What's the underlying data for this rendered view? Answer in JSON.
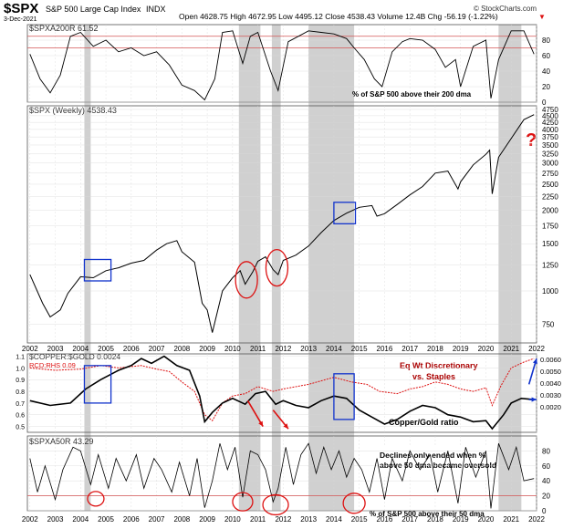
{
  "header": {
    "symbol": "$SPX",
    "name": "S&P 500 Large Cap Index",
    "exchange": "INDX",
    "date": "3-Dec-2021",
    "quote": "Open 4628.75  High 4672.95  Low 4495.12  Close 4538.43  Volume 12.4B  Chg -56.19 (-1.22%)",
    "arrow": "▼",
    "watermark": "© StockCharts.com"
  },
  "colors": {
    "shade": "#c8c8c8",
    "line": "#000000",
    "red": "#dd1111",
    "blue": "#1133cc",
    "grid": "#d8d8d8",
    "frame": "#555555",
    "refline": "#d45555"
  },
  "chart_data": [
    {
      "type": "line",
      "title": "$SPXA200R 61.52",
      "annotation": "% of S&P 500 above their 200 dma",
      "ylim": [
        0,
        100
      ],
      "yticks": [
        "0",
        "20",
        "40",
        "60",
        "80"
      ],
      "x": [
        2002.0,
        2002.4,
        2002.8,
        2003.2,
        2003.6,
        2004.0,
        2004.5,
        2005.0,
        2005.5,
        2006.0,
        2006.5,
        2007.0,
        2007.5,
        2008.0,
        2008.5,
        2008.9,
        2009.3,
        2009.6,
        2010.0,
        2010.4,
        2010.7,
        2011.0,
        2011.5,
        2011.8,
        2012.2,
        2012.6,
        2013.0,
        2013.5,
        2014.0,
        2014.5,
        2014.8,
        2015.2,
        2015.6,
        2015.9,
        2016.3,
        2016.7,
        2017.0,
        2017.5,
        2018.0,
        2018.4,
        2018.8,
        2019.0,
        2019.5,
        2020.0,
        2020.2,
        2020.5,
        2021.0,
        2021.5,
        2021.9
      ],
      "values": [
        62,
        30,
        12,
        35,
        85,
        90,
        72,
        80,
        65,
        70,
        60,
        65,
        48,
        22,
        15,
        3,
        30,
        90,
        92,
        50,
        85,
        90,
        40,
        15,
        78,
        85,
        92,
        90,
        88,
        82,
        70,
        55,
        30,
        20,
        65,
        78,
        82,
        80,
        68,
        45,
        55,
        20,
        72,
        80,
        5,
        55,
        92,
        92,
        62
      ],
      "reference_lines": [
        70,
        85
      ],
      "shaded_regions": [
        [
          2004.15,
          2004.4
        ],
        [
          2010.25,
          2011.1
        ],
        [
          2011.55,
          2011.9
        ],
        [
          2013.0,
          2014.8
        ],
        [
          2020.5,
          2021.4
        ]
      ]
    },
    {
      "type": "line",
      "title": "$SPX (Weekly) 4538.43",
      "scale": "log",
      "ylim": [
        640,
        4900
      ],
      "yticks": [
        "750",
        "1000",
        "1250",
        "1500",
        "1750",
        "2000",
        "2250",
        "2500",
        "2750",
        "3000",
        "3250",
        "3500",
        "3750",
        "4000",
        "4250",
        "4500",
        "4750"
      ],
      "x": [
        2002.0,
        2002.5,
        2002.8,
        2003.2,
        2003.5,
        2004.0,
        2004.5,
        2005.0,
        2005.5,
        2006.0,
        2006.5,
        2007.0,
        2007.4,
        2007.8,
        2008.0,
        2008.5,
        2008.8,
        2009.0,
        2009.2,
        2009.6,
        2010.0,
        2010.3,
        2010.5,
        2010.8,
        2011.0,
        2011.3,
        2011.6,
        2011.8,
        2012.0,
        2012.5,
        2013.0,
        2013.5,
        2014.0,
        2014.5,
        2015.0,
        2015.5,
        2015.7,
        2016.0,
        2016.5,
        2017.0,
        2017.5,
        2018.0,
        2018.5,
        2018.9,
        2019.0,
        2019.5,
        2020.0,
        2020.15,
        2020.25,
        2020.5,
        2021.0,
        2021.5,
        2021.9
      ],
      "values": [
        1150,
        900,
        800,
        850,
        980,
        1130,
        1120,
        1190,
        1220,
        1270,
        1300,
        1420,
        1500,
        1540,
        1400,
        1280,
        900,
        850,
        700,
        1000,
        1120,
        1190,
        1060,
        1180,
        1290,
        1340,
        1200,
        1150,
        1300,
        1360,
        1470,
        1650,
        1830,
        1950,
        2050,
        2080,
        1900,
        1940,
        2100,
        2280,
        2450,
        2750,
        2800,
        2400,
        2550,
        2950,
        3230,
        3350,
        2300,
        3150,
        3700,
        4350,
        4540
      ],
      "annotation": "?",
      "shaded_regions": [
        [
          2004.15,
          2004.4
        ],
        [
          2010.25,
          2011.1
        ],
        [
          2011.55,
          2011.9
        ],
        [
          2013.0,
          2014.8
        ],
        [
          2020.5,
          2021.4
        ]
      ]
    },
    {
      "type": "line",
      "title": "$COPPER:$GOLD 0.0024",
      "subtitle": "RCD:RHS 0.09",
      "ylim": [
        0.45,
        1.12
      ],
      "yticks_left": [
        "0.5",
        "0.6",
        "0.7",
        "0.8",
        "0.9",
        "1.0",
        "1.1"
      ],
      "yticks_right": [
        "0.0020",
        "0.0030",
        "0.0040",
        "0.0050",
        "0.0060"
      ],
      "series": [
        {
          "name": "Copper/Gold ratio",
          "x": [
            2002.0,
            2002.8,
            2003.6,
            2004.2,
            2004.8,
            2005.5,
            2006.0,
            2006.4,
            2006.8,
            2007.3,
            2007.8,
            2008.3,
            2008.7,
            2008.9,
            2009.2,
            2009.6,
            2010.0,
            2010.5,
            2010.9,
            2011.3,
            2011.7,
            2012.0,
            2012.5,
            2013.0,
            2013.5,
            2014.0,
            2014.5,
            2015.0,
            2015.5,
            2016.0,
            2016.5,
            2017.0,
            2017.5,
            2018.0,
            2018.5,
            2019.0,
            2019.5,
            2020.0,
            2020.25,
            2020.7,
            2021.0,
            2021.4,
            2021.9
          ],
          "values": [
            0.72,
            0.68,
            0.7,
            0.82,
            0.9,
            0.98,
            1.02,
            1.08,
            1.04,
            1.1,
            1.02,
            0.98,
            0.76,
            0.54,
            0.62,
            0.7,
            0.74,
            0.69,
            0.78,
            0.8,
            0.69,
            0.72,
            0.68,
            0.66,
            0.72,
            0.76,
            0.74,
            0.64,
            0.58,
            0.52,
            0.56,
            0.63,
            0.68,
            0.66,
            0.6,
            0.58,
            0.54,
            0.55,
            0.48,
            0.6,
            0.7,
            0.74,
            0.73
          ]
        },
        {
          "name": "Eq Wt Discretionary vs. Staples",
          "x": [
            2002.0,
            2003.0,
            2004.0,
            2004.8,
            2005.5,
            2006.4,
            2007.0,
            2007.5,
            2008.0,
            2008.5,
            2008.9,
            2009.2,
            2009.6,
            2010.0,
            2010.5,
            2011.0,
            2011.6,
            2012.0,
            2013.0,
            2014.0,
            2014.7,
            2015.3,
            2015.8,
            2016.5,
            2017.0,
            2017.5,
            2018.0,
            2018.5,
            2019.0,
            2019.5,
            2020.0,
            2020.25,
            2020.6,
            2021.0,
            2021.5,
            2021.9
          ],
          "values": [
            1.0,
            0.98,
            0.99,
            1.02,
            1.0,
            1.02,
            0.99,
            0.97,
            0.88,
            0.8,
            0.6,
            0.55,
            0.7,
            0.76,
            0.78,
            0.84,
            0.8,
            0.82,
            0.86,
            0.92,
            0.88,
            0.86,
            0.8,
            0.78,
            0.82,
            0.84,
            0.88,
            0.86,
            0.82,
            0.8,
            0.83,
            0.68,
            0.85,
            1.0,
            1.05,
            1.08
          ]
        }
      ],
      "labels": [
        "Eq Wt Discretionary",
        "vs. Staples",
        "Copper/Gold ratio"
      ],
      "shaded_regions": [
        [
          2004.15,
          2004.4
        ],
        [
          2010.25,
          2011.1
        ],
        [
          2011.55,
          2011.9
        ],
        [
          2013.0,
          2014.8
        ],
        [
          2020.5,
          2021.4
        ]
      ]
    },
    {
      "type": "line",
      "title": "$SPXA50R 43.29",
      "annotation": "% of S&P 500 above their 50 dma",
      "callout_lines": [
        "Declines only ended when %",
        "above 50 dma became oversold"
      ],
      "ylim": [
        0,
        100
      ],
      "yticks": [
        "0",
        "20",
        "40",
        "60",
        "80"
      ],
      "x": [
        2002.0,
        2002.3,
        2002.6,
        2003.0,
        2003.3,
        2003.7,
        2004.0,
        2004.4,
        2004.7,
        2005.1,
        2005.4,
        2005.8,
        2006.2,
        2006.5,
        2006.9,
        2007.2,
        2007.6,
        2007.9,
        2008.3,
        2008.6,
        2008.9,
        2009.2,
        2009.5,
        2009.8,
        2010.1,
        2010.4,
        2010.7,
        2011.0,
        2011.3,
        2011.6,
        2011.8,
        2012.1,
        2012.4,
        2012.7,
        2013.0,
        2013.3,
        2013.6,
        2013.9,
        2014.2,
        2014.5,
        2014.8,
        2015.1,
        2015.4,
        2015.7,
        2016.0,
        2016.3,
        2016.7,
        2017.0,
        2017.4,
        2017.8,
        2018.1,
        2018.5,
        2018.9,
        2019.2,
        2019.6,
        2020.0,
        2020.2,
        2020.5,
        2020.9,
        2021.2,
        2021.5,
        2021.9
      ],
      "values": [
        70,
        25,
        60,
        15,
        55,
        85,
        80,
        35,
        75,
        30,
        70,
        40,
        75,
        30,
        70,
        55,
        25,
        65,
        20,
        70,
        4,
        40,
        90,
        55,
        85,
        18,
        80,
        75,
        55,
        12,
        30,
        85,
        35,
        75,
        90,
        50,
        85,
        55,
        80,
        45,
        70,
        55,
        25,
        70,
        15,
        70,
        40,
        80,
        55,
        75,
        25,
        80,
        10,
        85,
        45,
        80,
        3,
        90,
        55,
        85,
        40,
        43
      ],
      "reference_lines": [
        20
      ],
      "shaded_regions": [
        [
          2004.15,
          2004.4
        ],
        [
          2010.25,
          2011.1
        ],
        [
          2011.55,
          2011.9
        ],
        [
          2013.0,
          2014.8
        ],
        [
          2020.5,
          2021.4
        ]
      ]
    }
  ],
  "x_axis": {
    "year_labels": [
      "2002",
      "2003",
      "2004",
      "2005",
      "2006",
      "2007",
      "2008",
      "2009",
      "2010",
      "2011",
      "2012",
      "2013",
      "2014",
      "2015",
      "2016",
      "2017",
      "2018",
      "2019",
      "2020",
      "2021",
      "2022"
    ],
    "range": [
      2001.9,
      2022.0
    ]
  }
}
